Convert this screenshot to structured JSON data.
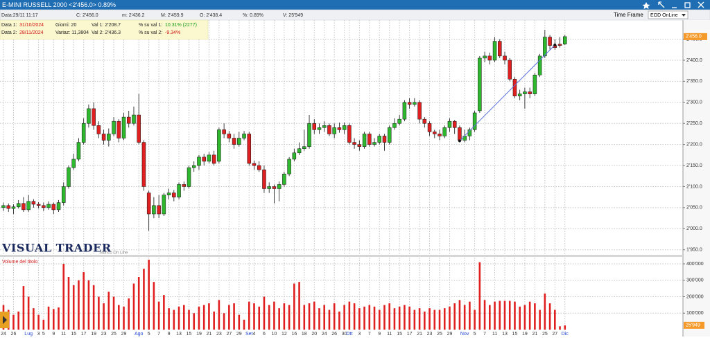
{
  "header": {
    "title": "E-MINI RUSSELL 2000 <2'456.0> 0.89%",
    "fields": [
      "Data:29/11 11:17",
      "C: 2'456.0",
      "m: 2'436.2",
      "M: 2'459.9",
      "O: 2'438.4",
      "%: 0.89%",
      "V: 25'949"
    ],
    "time_frame_label": "Time Frame",
    "time_frame": "EOD OnLine"
  },
  "info_box": {
    "rows": [
      [
        "Data 1:",
        "31/10/2024",
        "Giorni: 20",
        "Val 1: 2'208.7",
        "% su val 1:",
        "10.31% (2277)"
      ],
      [
        "Data 2:",
        "28/11/2024",
        "Variaz: 11,3804",
        "Val 2: 2'436.3",
        "% su val 2:",
        "-9.34%"
      ]
    ]
  },
  "logo": {
    "name": "VISUAL TRADER",
    "tagline": "Storico On Line"
  },
  "chart_data": {
    "type": "candlestick",
    "categories": [
      "24",
      null,
      "26",
      null,
      null,
      "Lug",
      null,
      "3",
      "5",
      null,
      "9",
      null,
      "11",
      null,
      "15",
      null,
      "17",
      null,
      "19",
      null,
      "23",
      null,
      "25",
      null,
      "29",
      null,
      null,
      "Ago",
      null,
      "5",
      null,
      "7",
      null,
      "9",
      null,
      "13",
      null,
      "15",
      null,
      "19",
      null,
      "21",
      null,
      "23",
      null,
      "27",
      null,
      "29",
      null,
      "Set",
      "4",
      null,
      "6",
      null,
      "10",
      null,
      "12",
      null,
      "16",
      null,
      "18",
      null,
      "20",
      null,
      "24",
      null,
      "26",
      null,
      "30",
      "Ott",
      null,
      "3",
      null,
      "7",
      null,
      "9",
      null,
      "11",
      null,
      "15",
      null,
      "17",
      null,
      "21",
      null,
      "23",
      null,
      "25",
      null,
      "29",
      null,
      null,
      "Nov",
      null,
      "5",
      null,
      "7",
      null,
      "11",
      null,
      "13",
      null,
      "15",
      null,
      "19",
      null,
      "21",
      null,
      "25",
      null,
      "27",
      null,
      "Dic"
    ],
    "open": [
      2050,
      2055,
      2048,
      2052,
      2060,
      2045,
      2065,
      2058,
      2055,
      2050,
      2058,
      2045,
      2062,
      2100,
      2145,
      2165,
      2205,
      2250,
      2285,
      2245,
      2225,
      2210,
      2225,
      2255,
      2215,
      2265,
      2250,
      2270,
      2205,
      2085,
      2035,
      2055,
      2035,
      2080,
      2085,
      2075,
      2105,
      2100,
      2145,
      2150,
      2170,
      2160,
      2175,
      2160,
      2235,
      2225,
      2215,
      2200,
      2215,
      2225,
      2155,
      2150,
      2140,
      2095,
      2100,
      2095,
      2105,
      2130,
      2165,
      2180,
      2190,
      2195,
      2250,
      2235,
      2240,
      2245,
      2225,
      2240,
      2235,
      2245,
      2205,
      2200,
      2195,
      2225,
      2200,
      2205,
      2220,
      2205,
      2240,
      2250,
      2260,
      2300,
      2295,
      2300,
      2260,
      2250,
      2230,
      2225,
      2220,
      2240,
      2255,
      2240,
      2210,
      2220,
      2235,
      2280,
      2405,
      2410,
      2400,
      2445,
      2410,
      2400,
      2355,
      2315,
      2320,
      2325,
      2320,
      2365,
      2410,
      2455,
      2435,
      2438,
      2438.4
    ],
    "high": [
      2062,
      2060,
      2058,
      2068,
      2075,
      2080,
      2070,
      2063,
      2062,
      2065,
      2062,
      2068,
      2110,
      2150,
      2178,
      2215,
      2262,
      2295,
      2300,
      2255,
      2235,
      2238,
      2265,
      2260,
      2275,
      2280,
      2290,
      2320,
      2210,
      2090,
      2075,
      2080,
      2085,
      2095,
      2092,
      2110,
      2112,
      2150,
      2160,
      2175,
      2178,
      2182,
      2185,
      2240,
      2250,
      2232,
      2225,
      2230,
      2232,
      2230,
      2162,
      2160,
      2150,
      2110,
      2105,
      2112,
      2135,
      2170,
      2190,
      2205,
      2235,
      2270,
      2260,
      2250,
      2255,
      2250,
      2250,
      2252,
      2252,
      2250,
      2215,
      2210,
      2230,
      2230,
      2215,
      2225,
      2225,
      2245,
      2262,
      2270,
      2305,
      2310,
      2310,
      2305,
      2265,
      2255,
      2235,
      2235,
      2245,
      2262,
      2258,
      2245,
      2235,
      2240,
      2280,
      2410,
      2420,
      2418,
      2455,
      2450,
      2420,
      2405,
      2360,
      2330,
      2335,
      2335,
      2370,
      2415,
      2472,
      2460,
      2450,
      2455,
      2459.9
    ],
    "low": [
      2042,
      2040,
      2035,
      2048,
      2040,
      2040,
      2050,
      2048,
      2042,
      2045,
      2035,
      2040,
      2055,
      2095,
      2140,
      2160,
      2200,
      2240,
      2235,
      2215,
      2200,
      2195,
      2220,
      2205,
      2210,
      2240,
      2245,
      2200,
      2090,
      1995,
      2025,
      2025,
      2030,
      2070,
      2065,
      2070,
      2090,
      2095,
      2135,
      2140,
      2150,
      2155,
      2150,
      2155,
      2215,
      2205,
      2190,
      2195,
      2210,
      2150,
      2140,
      2135,
      2085,
      2085,
      2060,
      2065,
      2100,
      2125,
      2160,
      2175,
      2185,
      2190,
      2225,
      2225,
      2230,
      2220,
      2215,
      2228,
      2225,
      2200,
      2190,
      2185,
      2190,
      2195,
      2195,
      2200,
      2185,
      2200,
      2235,
      2245,
      2255,
      2285,
      2290,
      2250,
      2240,
      2220,
      2215,
      2210,
      2215,
      2230,
      2225,
      2205,
      2205,
      2210,
      2230,
      2275,
      2395,
      2390,
      2395,
      2405,
      2390,
      2350,
      2310,
      2305,
      2285,
      2310,
      2315,
      2360,
      2405,
      2425,
      2425,
      2430,
      2436.2
    ],
    "close": [
      2055,
      2048,
      2052,
      2060,
      2045,
      2065,
      2058,
      2055,
      2050,
      2058,
      2045,
      2062,
      2100,
      2145,
      2165,
      2205,
      2250,
      2285,
      2245,
      2225,
      2210,
      2225,
      2255,
      2215,
      2265,
      2250,
      2270,
      2205,
      2100,
      2035,
      2055,
      2035,
      2080,
      2085,
      2075,
      2105,
      2100,
      2145,
      2150,
      2170,
      2160,
      2175,
      2155,
      2235,
      2225,
      2215,
      2200,
      2215,
      2225,
      2155,
      2150,
      2140,
      2095,
      2100,
      2095,
      2105,
      2130,
      2165,
      2180,
      2190,
      2195,
      2250,
      2235,
      2240,
      2245,
      2225,
      2240,
      2235,
      2245,
      2205,
      2200,
      2195,
      2225,
      2200,
      2205,
      2220,
      2205,
      2240,
      2250,
      2260,
      2300,
      2295,
      2300,
      2260,
      2250,
      2230,
      2225,
      2220,
      2240,
      2255,
      2240,
      2210,
      2220,
      2235,
      2275,
      2405,
      2410,
      2400,
      2445,
      2410,
      2400,
      2355,
      2315,
      2320,
      2325,
      2320,
      2365,
      2410,
      2455,
      2435,
      2430,
      2435,
      2456
    ],
    "up_color": "#2eb82e",
    "down_color": "#e02020",
    "ylim": [
      1938,
      2492
    ],
    "yticks": [
      {
        "value": 1950,
        "label": "1'950.0"
      },
      {
        "value": 2000,
        "label": "2'000.0"
      },
      {
        "value": 2050,
        "label": "2'050.0"
      },
      {
        "value": 2100,
        "label": "2'100.0"
      },
      {
        "value": 2150,
        "label": "2'150.0"
      },
      {
        "value": 2200,
        "label": "2'200.0"
      },
      {
        "value": 2250,
        "label": "2'250.0"
      },
      {
        "value": 2300,
        "label": "2'300.0"
      },
      {
        "value": 2350,
        "label": "2'350.0"
      },
      {
        "value": 2400,
        "label": "2'400.0"
      },
      {
        "value": 2450,
        "label": "2'450.0"
      }
    ],
    "grid": true,
    "last_label": "2'456.0",
    "trendline": {
      "values": [
        2208.7,
        2436.3
      ],
      "color": "#5a6ee0"
    },
    "volume": {
      "title": "Volume del titolo",
      "color": "#e02020",
      "values": [
        150000,
        120000,
        90000,
        110000,
        265000,
        200000,
        130000,
        90000,
        60000,
        140000,
        125000,
        135000,
        400000,
        320000,
        270000,
        300000,
        350000,
        300000,
        270000,
        200000,
        160000,
        230000,
        200000,
        150000,
        140000,
        190000,
        280000,
        320000,
        370000,
        425000,
        290000,
        170000,
        210000,
        130000,
        120000,
        140000,
        150000,
        120000,
        100000,
        140000,
        150000,
        160000,
        110000,
        180000,
        100000,
        150000,
        160000,
        90000,
        60000,
        170000,
        160000,
        140000,
        200000,
        150000,
        170000,
        130000,
        160000,
        150000,
        280000,
        290000,
        150000,
        160000,
        170000,
        130000,
        150000,
        120000,
        160000,
        110000,
        150000,
        170000,
        160000,
        130000,
        140000,
        150000,
        140000,
        120000,
        150000,
        160000,
        130000,
        140000,
        150000,
        140000,
        120000,
        130000,
        110000,
        130000,
        120000,
        120000,
        130000,
        140000,
        160000,
        180000,
        150000,
        170000,
        120000,
        410000,
        180000,
        150000,
        170000,
        175000,
        175000,
        175000,
        170000,
        140000,
        150000,
        170000,
        160000,
        120000,
        220000,
        160000,
        120000,
        20000,
        25949
      ],
      "ylim": [
        0,
        438000
      ],
      "yticks": [
        {
          "value": 100000,
          "label": "100'000"
        },
        {
          "value": 200000,
          "label": "200'000"
        },
        {
          "value": 300000,
          "label": "300'000"
        },
        {
          "value": 400000,
          "label": "400'000"
        }
      ],
      "last_label": "25'949"
    }
  }
}
